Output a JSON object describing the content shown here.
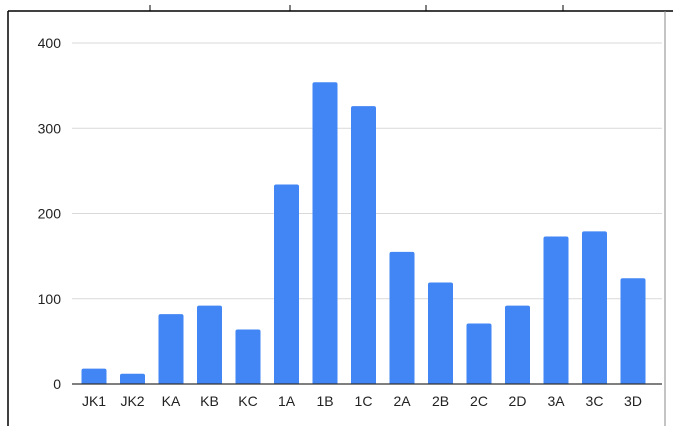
{
  "chart_data": {
    "type": "bar",
    "title": "",
    "xlabel": "",
    "ylabel": "",
    "categories": [
      "JK1",
      "JK2",
      "KA",
      "KB",
      "KC",
      "1A",
      "1B",
      "1C",
      "2A",
      "2B",
      "2C",
      "2D",
      "3A",
      "3C",
      "3D"
    ],
    "values": [
      18,
      12,
      82,
      92,
      64,
      234,
      354,
      326,
      155,
      119,
      71,
      92,
      173,
      179,
      124
    ],
    "ylim": [
      0,
      400
    ],
    "yticks": [
      0,
      100,
      200,
      300,
      400
    ],
    "ytick_labels": [
      "0",
      "100",
      "200",
      "300",
      "400"
    ],
    "grid": true,
    "legend": "none",
    "colors": {
      "bar": "#4285f4",
      "grid": "#d9d9d9",
      "axis": "#333333",
      "text": "#222222",
      "frame": "#000000"
    }
  }
}
